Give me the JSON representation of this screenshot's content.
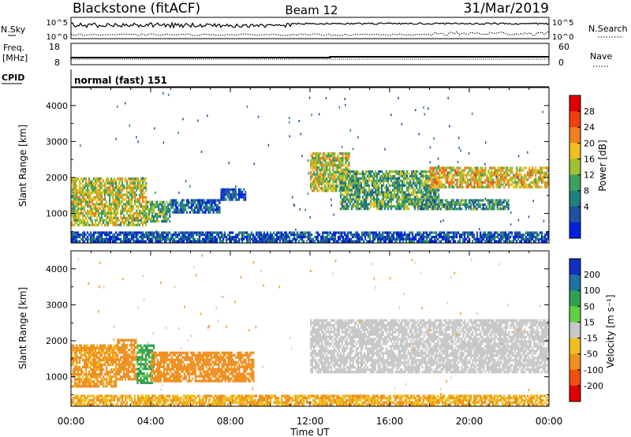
{
  "header": {
    "station": "Blackstone (fitACF)",
    "beam": "Beam 12",
    "date": "31/Mar/2019"
  },
  "summary": {
    "nsky_label": "N.Sky",
    "nsearch_label": "N.Search",
    "nsky_ticks": [
      "10^5",
      "10^0"
    ],
    "nsearch_ticks": [
      "10^5",
      "10^0"
    ],
    "freq_label": "Freq.",
    "freq_unit": "[MHz]",
    "freq_ticks": [
      "18",
      "8"
    ],
    "nave_label": "Nave",
    "nave_ticks": [
      "60",
      "0"
    ],
    "cpid_label": "CPID",
    "cpid_text": "normal (fast) 151"
  },
  "axes": {
    "ylabel": "Slant Range [km]",
    "xlabel": "Time UT",
    "yticks": [
      "1000",
      "2000",
      "3000",
      "4000"
    ],
    "xticks": [
      "00:00",
      "04:00",
      "08:00",
      "12:00",
      "16:00",
      "20:00",
      "00:00"
    ]
  },
  "colorbars": {
    "power": {
      "label": "Power [dB]",
      "ticks": [
        "28",
        "24",
        "20",
        "16",
        "12",
        "8",
        "4"
      ],
      "colors": [
        "#e00000",
        "#f04010",
        "#f08020",
        "#f0c020",
        "#a0c030",
        "#40a060",
        "#208080",
        "#2050a0",
        "#0020e0"
      ]
    },
    "velocity": {
      "label": "Velocity [m s⁻¹]",
      "ticks": [
        "200",
        "100",
        "50",
        "15",
        "-15",
        "-50",
        "-100",
        "-200"
      ],
      "colors": [
        "#1030c0",
        "#2070a0",
        "#30a050",
        "#60d040",
        "#c8c8c8",
        "#f0c020",
        "#f09020",
        "#f05010",
        "#e00000"
      ]
    }
  },
  "chart_data": [
    {
      "type": "heatmap",
      "panel": "power",
      "xlabel": "Time UT",
      "ylabel": "Slant Range [km]",
      "xlim": [
        0,
        24
      ],
      "ylim": [
        180,
        4500
      ],
      "value_unit": "dB",
      "regions": [
        {
          "t": [
            0.0,
            3.8
          ],
          "range": [
            650,
            2000
          ],
          "level": 18
        },
        {
          "t": [
            3.8,
            5.0
          ],
          "range": [
            750,
            1350
          ],
          "level": 14
        },
        {
          "t": [
            5.0,
            7.5
          ],
          "range": [
            1000,
            1400
          ],
          "level": 8
        },
        {
          "t": [
            7.5,
            8.8
          ],
          "range": [
            1350,
            1700
          ],
          "level": 6
        },
        {
          "t": [
            12.0,
            14.0
          ],
          "range": [
            1600,
            2700
          ],
          "level": 18
        },
        {
          "t": [
            13.5,
            18.5
          ],
          "range": [
            1100,
            2200
          ],
          "level": 14
        },
        {
          "t": [
            17.5,
            22.0
          ],
          "range": [
            1100,
            1400
          ],
          "level": 12
        },
        {
          "t": [
            18.0,
            24.0
          ],
          "range": [
            1700,
            2300
          ],
          "level": 20
        },
        {
          "t": [
            0.0,
            24.0
          ],
          "range": [
            200,
            500
          ],
          "level": 7
        }
      ]
    },
    {
      "type": "heatmap",
      "panel": "velocity",
      "xlabel": "Time UT",
      "ylabel": "Slant Range [km]",
      "xlim": [
        0,
        24
      ],
      "ylim": [
        180,
        4500
      ],
      "value_unit": "m/s",
      "regions": [
        {
          "t": [
            0.0,
            2.3
          ],
          "range": [
            700,
            1900
          ],
          "level": -40
        },
        {
          "t": [
            2.3,
            3.3
          ],
          "range": [
            900,
            2050
          ],
          "level": -50
        },
        {
          "t": [
            3.3,
            4.2
          ],
          "range": [
            800,
            1900
          ],
          "level": 40
        },
        {
          "t": [
            4.0,
            9.2
          ],
          "range": [
            850,
            1700
          ],
          "level": -50
        },
        {
          "t": [
            12.0,
            24.0
          ],
          "range": [
            1100,
            2600
          ],
          "level": 0
        },
        {
          "t": [
            0.0,
            24.0
          ],
          "range": [
            200,
            500
          ],
          "level": -30
        }
      ]
    }
  ]
}
